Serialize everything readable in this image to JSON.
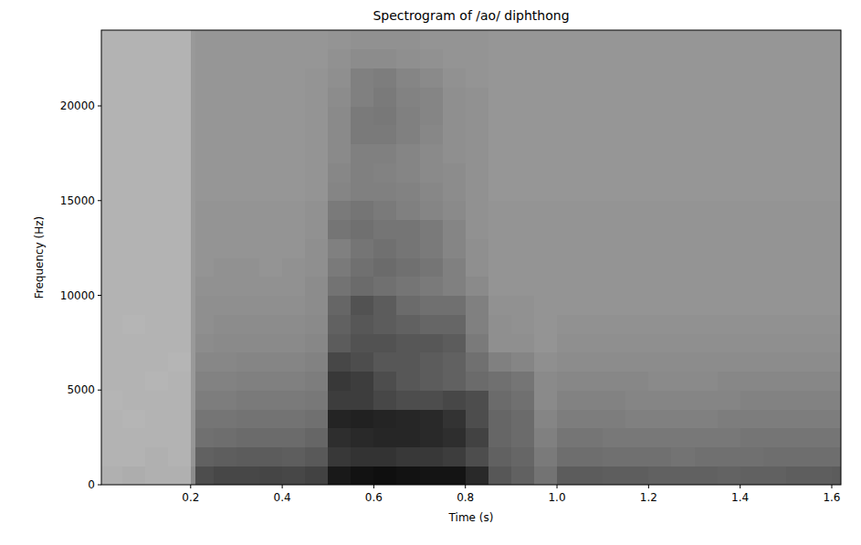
{
  "chart_data": {
    "type": "heatmap",
    "title": "Spectrogram of /ao/ diphthong",
    "x_label": "Time (s)",
    "y_label": "Frequency (Hz)",
    "color": "gray",
    "xlim": [
      0.005,
      1.62
    ],
    "ylim": [
      0,
      24000
    ],
    "xticks": [
      0.2,
      0.4,
      0.6,
      0.8,
      {
        "value": 1,
        "label": "1.0"
      },
      1.2,
      1.4,
      1.6
    ],
    "yticks": [
      0,
      5000,
      10000,
      15000,
      20000
    ],
    "zlim": [
      0,
      100
    ],
    "x_edges": [
      0,
      0.05,
      0.1,
      0.15,
      0.2,
      0.21,
      0.25,
      0.3,
      0.35,
      0.4,
      0.45,
      0.5,
      0.55,
      0.6,
      0.65,
      0.7,
      0.75,
      0.8,
      0.85,
      0.9,
      0.95,
      1,
      1.05,
      1.1,
      1.15,
      1.2,
      1.25,
      1.3,
      1.35,
      1.4,
      1.45,
      1.5,
      1.55,
      1.6,
      1.65
    ],
    "y_edges": [
      0,
      1000,
      2000,
      3000,
      4000,
      5000,
      6000,
      7000,
      8000,
      9000,
      10000,
      11000,
      12000,
      13000,
      14000,
      15000,
      16000,
      17000,
      18000,
      19000,
      20000,
      21000,
      22000,
      23000,
      24000
    ],
    "cells": [
      [
        31,
        32,
        31,
        31,
        45,
        70,
        72,
        72,
        73,
        72,
        74,
        90,
        93,
        94,
        93,
        92,
        92,
        84,
        66,
        62,
        55,
        64,
        64,
        63,
        63,
        62,
        62,
        62,
        61,
        62,
        62,
        63,
        63,
        64
      ],
      [
        30,
        30,
        31,
        30,
        42,
        62,
        63,
        64,
        64,
        63,
        65,
        78,
        80,
        80,
        78,
        78,
        76,
        70,
        62,
        60,
        52,
        57,
        57,
        56,
        56,
        56,
        55,
        56,
        56,
        56,
        57,
        57,
        57,
        57
      ],
      [
        30,
        30,
        30,
        30,
        41,
        56,
        57,
        58,
        58,
        58,
        60,
        82,
        84,
        85,
        85,
        84,
        82,
        74,
        60,
        58,
        50,
        54,
        54,
        53,
        53,
        53,
        53,
        53,
        53,
        54,
        54,
        54,
        54,
        54
      ],
      [
        30,
        29,
        30,
        30,
        41,
        54,
        54,
        55,
        55,
        55,
        56,
        86,
        87,
        86,
        85,
        84,
        80,
        70,
        60,
        58,
        48,
        51,
        51,
        51,
        50,
        50,
        50,
        50,
        51,
        51,
        51,
        51,
        51,
        51
      ],
      [
        29,
        30,
        30,
        30,
        40,
        51,
        51,
        52,
        52,
        52,
        53,
        76,
        76,
        72,
        70,
        70,
        72,
        70,
        58,
        56,
        46,
        49,
        49,
        49,
        48,
        48,
        48,
        48,
        48,
        49,
        49,
        49,
        49,
        49
      ],
      [
        30,
        30,
        29,
        30,
        40,
        49,
        49,
        50,
        50,
        50,
        51,
        78,
        76,
        70,
        66,
        64,
        62,
        58,
        56,
        54,
        46,
        47,
        47,
        47,
        47,
        46,
        46,
        46,
        47,
        47,
        47,
        47,
        47,
        47
      ],
      [
        30,
        30,
        30,
        29,
        40,
        47,
        47,
        48,
        48,
        48,
        49,
        72,
        70,
        66,
        66,
        64,
        62,
        56,
        50,
        48,
        44,
        45,
        45,
        45,
        45,
        45,
        45,
        45,
        45,
        45,
        45,
        45,
        45,
        45
      ],
      [
        30,
        30,
        30,
        30,
        40,
        45,
        46,
        46,
        46,
        46,
        47,
        64,
        68,
        68,
        66,
        66,
        64,
        52,
        44,
        44,
        42,
        44,
        44,
        44,
        44,
        44,
        44,
        44,
        44,
        44,
        44,
        44,
        44,
        44
      ],
      [
        30,
        29,
        30,
        30,
        40,
        44,
        45,
        45,
        45,
        45,
        46,
        62,
        66,
        64,
        62,
        60,
        60,
        50,
        44,
        43,
        42,
        43,
        43,
        43,
        43,
        43,
        43,
        43,
        43,
        43,
        43,
        43,
        43,
        43
      ],
      [
        30,
        30,
        30,
        30,
        40,
        44,
        44,
        44,
        44,
        44,
        45,
        60,
        68,
        64,
        58,
        56,
        56,
        50,
        43,
        43,
        42,
        42,
        42,
        42,
        42,
        42,
        42,
        42,
        42,
        42,
        42,
        42,
        42,
        42
      ],
      [
        30,
        30,
        30,
        30,
        40,
        43,
        43,
        43,
        43,
        43,
        45,
        55,
        58,
        56,
        54,
        52,
        50,
        46,
        42,
        42,
        42,
        42,
        42,
        42,
        42,
        42,
        42,
        42,
        42,
        42,
        42,
        42,
        42,
        42
      ],
      [
        30,
        30,
        30,
        30,
        40,
        42,
        43,
        43,
        42,
        43,
        44,
        52,
        56,
        58,
        56,
        54,
        50,
        44,
        42,
        42,
        42,
        42,
        42,
        42,
        42,
        42,
        42,
        42,
        42,
        42,
        42,
        42,
        42,
        42
      ],
      [
        30,
        30,
        30,
        30,
        40,
        42,
        42,
        42,
        42,
        42,
        44,
        50,
        54,
        56,
        54,
        52,
        48,
        44,
        42,
        42,
        42,
        42,
        42,
        42,
        42,
        42,
        42,
        42,
        42,
        42,
        42,
        42,
        42,
        42
      ],
      [
        30,
        30,
        30,
        30,
        40,
        42,
        42,
        42,
        42,
        42,
        43,
        54,
        56,
        54,
        54,
        52,
        48,
        43,
        42,
        42,
        42,
        42,
        42,
        42,
        42,
        42,
        42,
        42,
        42,
        42,
        42,
        42,
        42,
        42
      ],
      [
        30,
        30,
        30,
        30,
        40,
        42,
        42,
        42,
        42,
        42,
        43,
        52,
        54,
        52,
        50,
        48,
        46,
        43,
        42,
        42,
        42,
        42,
        42,
        42,
        42,
        42,
        42,
        42,
        42,
        42,
        42,
        42,
        42,
        42
      ],
      [
        30,
        30,
        30,
        30,
        40,
        41,
        41,
        41,
        41,
        41,
        42,
        48,
        50,
        50,
        49,
        47,
        45,
        43,
        41,
        41,
        41,
        41,
        41,
        41,
        41,
        41,
        41,
        41,
        41,
        41,
        41,
        41,
        41,
        41
      ],
      [
        30,
        30,
        30,
        30,
        40,
        41,
        41,
        41,
        41,
        41,
        42,
        47,
        50,
        49,
        48,
        46,
        45,
        43,
        41,
        41,
        41,
        41,
        41,
        41,
        41,
        41,
        41,
        41,
        41,
        41,
        41,
        41,
        41,
        41
      ],
      [
        30,
        30,
        30,
        30,
        40,
        41,
        41,
        41,
        41,
        41,
        42,
        46,
        50,
        50,
        48,
        46,
        44,
        43,
        41,
        41,
        41,
        41,
        41,
        41,
        41,
        41,
        41,
        41,
        41,
        41,
        41,
        41,
        41,
        41
      ],
      [
        30,
        30,
        30,
        30,
        40,
        41,
        41,
        41,
        41,
        41,
        42,
        46,
        52,
        52,
        50,
        47,
        44,
        43,
        41,
        41,
        41,
        41,
        41,
        41,
        41,
        41,
        41,
        41,
        41,
        41,
        41,
        41,
        41,
        41
      ],
      [
        30,
        30,
        30,
        30,
        40,
        41,
        41,
        41,
        41,
        41,
        42,
        46,
        52,
        53,
        50,
        48,
        44,
        43,
        41,
        41,
        41,
        41,
        41,
        41,
        41,
        41,
        41,
        41,
        41,
        41,
        41,
        41,
        41,
        41
      ],
      [
        30,
        30,
        30,
        30,
        40,
        41,
        41,
        41,
        41,
        41,
        42,
        45,
        50,
        52,
        49,
        48,
        44,
        43,
        41,
        41,
        41,
        41,
        41,
        41,
        41,
        41,
        41,
        41,
        41,
        41,
        41,
        41,
        41,
        41
      ],
      [
        30,
        30,
        30,
        30,
        40,
        41,
        41,
        41,
        41,
        41,
        42,
        44,
        50,
        51,
        48,
        46,
        43,
        42,
        41,
        41,
        41,
        41,
        41,
        41,
        41,
        41,
        41,
        41,
        41,
        41,
        41,
        41,
        41,
        41
      ],
      [
        30,
        30,
        30,
        30,
        40,
        41,
        41,
        41,
        41,
        41,
        41,
        43,
        45,
        45,
        44,
        43,
        42,
        42,
        41,
        41,
        41,
        41,
        41,
        41,
        41,
        41,
        41,
        41,
        41,
        41,
        41,
        41,
        41,
        41
      ],
      [
        30,
        30,
        30,
        30,
        40,
        41,
        41,
        41,
        41,
        41,
        41,
        42,
        43,
        43,
        43,
        42,
        42,
        42,
        41,
        41,
        41,
        41,
        41,
        41,
        41,
        41,
        41,
        41,
        41,
        41,
        41,
        41,
        41,
        41
      ]
    ]
  }
}
